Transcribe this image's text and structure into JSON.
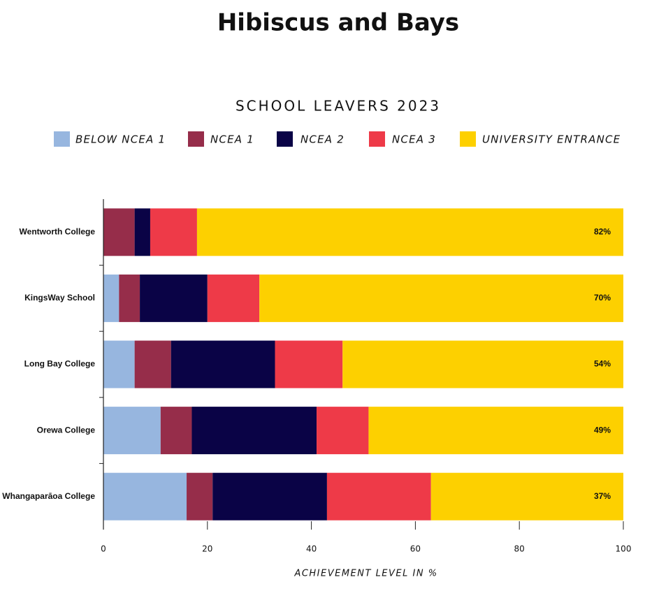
{
  "chart_data": {
    "type": "stacked-barh",
    "title": "Hibiscus and Bays",
    "subtitle": "SCHOOL LEAVERS 2023",
    "xlabel": "ACHIEVEMENT LEVEL IN %",
    "categories": [
      "Wentworth College",
      "KingsWay School",
      "Long Bay College",
      "Orewa College",
      "Whangaparāoa College"
    ],
    "series": [
      {
        "name": "BELOW NCEA 1",
        "color": "#97b6df",
        "values": [
          0,
          3,
          6,
          11,
          16
        ]
      },
      {
        "name": "NCEA 1",
        "color": "#962d4a",
        "values": [
          6,
          4,
          7,
          6,
          5
        ]
      },
      {
        "name": "NCEA 2",
        "color": "#0a0346",
        "values": [
          3,
          13,
          20,
          24,
          22
        ]
      },
      {
        "name": "NCEA 3",
        "color": "#ee3a48",
        "values": [
          9,
          10,
          13,
          10,
          20
        ]
      },
      {
        "name": "UNIVERSITY ENTRANCE",
        "color": "#fdd000",
        "values": [
          82,
          70,
          54,
          49,
          37
        ],
        "value_labels": [
          "82%",
          "70%",
          "54%",
          "49%",
          "37%"
        ]
      }
    ],
    "xlim": [
      0,
      100
    ],
    "xticks": [
      0,
      20,
      40,
      60,
      80,
      100
    ],
    "grid": false,
    "legend": "top"
  }
}
